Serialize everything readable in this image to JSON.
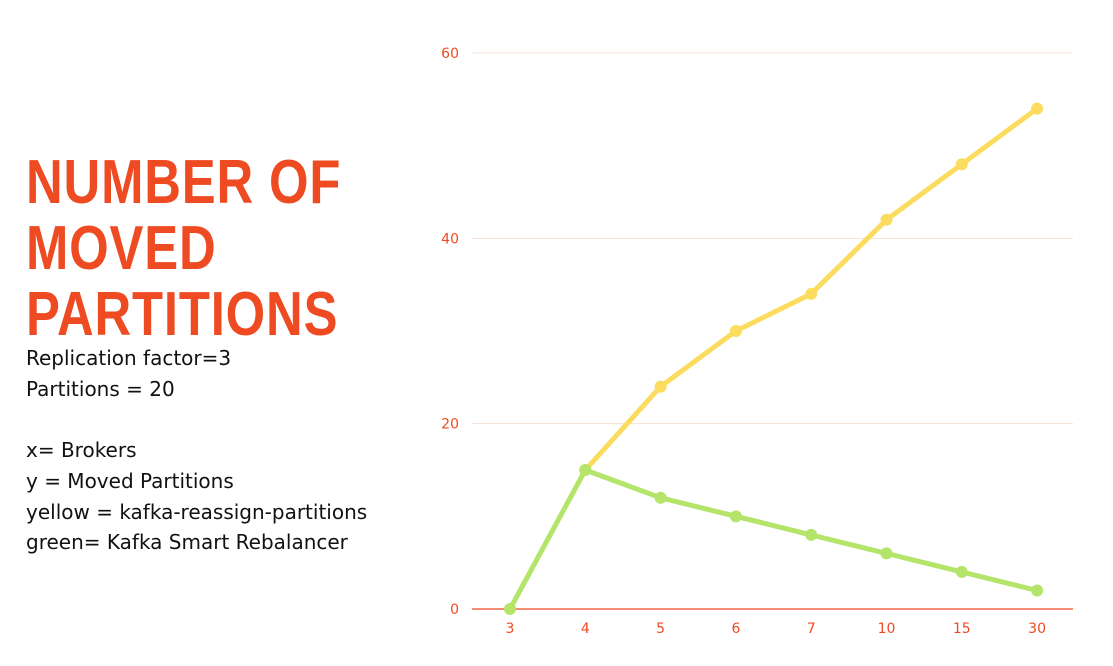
{
  "slide": {
    "title": "NUMBER OF MOVED PARTITIONS",
    "notes": {
      "replication": "Replication factor=3",
      "partitions": "Partitions = 20",
      "x_desc": "x= Brokers",
      "y_desc": "y = Moved Partitions",
      "yellow_desc": "yellow = kafka-reassign-partitions",
      "green_desc": "green= Kafka Smart Rebalancer"
    }
  },
  "colors": {
    "accent": "#ee4b23",
    "yellow_series": "#fbdc5e",
    "green_series": "#b4e46a",
    "gridline": "#f7e0d6"
  },
  "chart_data": {
    "type": "line",
    "categories": [
      "3",
      "4",
      "5",
      "6",
      "7",
      "10",
      "15",
      "30"
    ],
    "series": [
      {
        "color": "#fbdc5e",
        "values": [
          null,
          15,
          24,
          30,
          34,
          42,
          48,
          54
        ]
      },
      {
        "color": "#b4e46a",
        "values": [
          0,
          15,
          12,
          10,
          8,
          6,
          4,
          2
        ]
      }
    ],
    "yticks": [
      0,
      20,
      40,
      60
    ],
    "ylim": [
      0,
      60
    ],
    "grid": true,
    "legend": "none"
  }
}
